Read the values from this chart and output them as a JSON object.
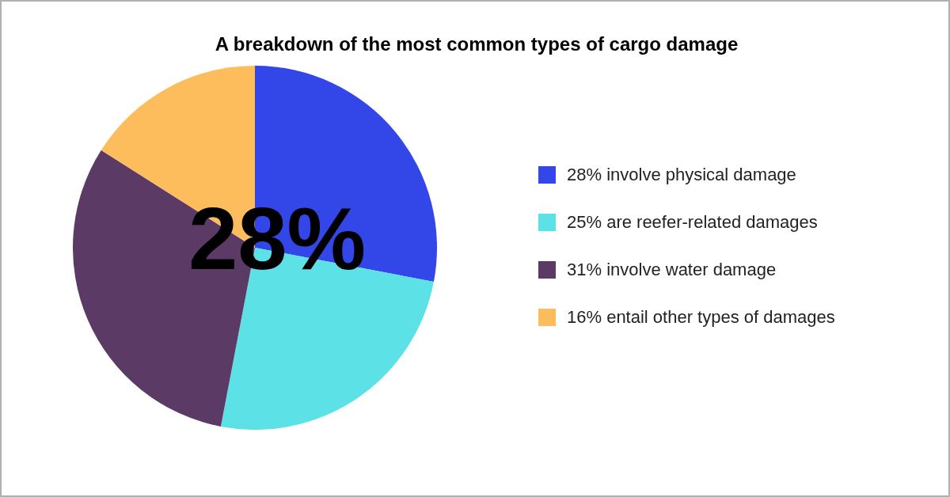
{
  "chart_data": {
    "type": "pie",
    "title": "A breakdown of the most common types of cargo damage",
    "categories": [
      "28% involve physical damage",
      "25% are reefer-related damages",
      "31% involve water damage",
      "16% entail other types of damages"
    ],
    "values": [
      28,
      25,
      31,
      16
    ],
    "colors": [
      "#3347e8",
      "#5ce1e6",
      "#5c3a66",
      "#fdbd5c"
    ],
    "legend": "right",
    "annotations": [
      "28%"
    ]
  }
}
